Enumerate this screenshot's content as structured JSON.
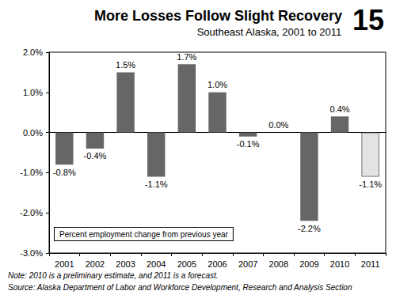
{
  "chart_data": {
    "type": "bar",
    "title": "More Losses Follow Slight Recovery",
    "subtitle": "Southeast Alaska, 2001 to 2011",
    "chart_number": "15",
    "caption": "Percent employment change from previous year",
    "notes": [
      "Note: 2010 is a preliminary estimate, and 2011 is a forecast.",
      "Source: Alaska Department of Labor and Workforce Development, Research and Analysis Section"
    ],
    "categories": [
      "2001",
      "2002",
      "2003",
      "2004",
      "2005",
      "2006",
      "2007",
      "2008",
      "2009",
      "2010",
      "2011"
    ],
    "values": [
      -0.8,
      -0.4,
      1.5,
      -1.1,
      1.7,
      1.0,
      -0.1,
      0.0,
      -2.2,
      0.4,
      -1.1
    ],
    "value_labels": [
      "-0.8%",
      "-0.4%",
      "1.5%",
      "-1.1%",
      "1.7%",
      "1.0%",
      "-0.1%",
      "0.0%",
      "-2.2%",
      "0.4%",
      "-1.1%"
    ],
    "colors": [
      "#666666",
      "#666666",
      "#666666",
      "#666666",
      "#666666",
      "#666666",
      "#666666",
      "#666666",
      "#666666",
      "#666666",
      "#e3e3e3"
    ],
    "ylim": [
      -3,
      2
    ],
    "yticks": [
      {
        "value": -3,
        "label": "-3.0%"
      },
      {
        "value": -2,
        "label": "-2.0%"
      },
      {
        "value": -1,
        "label": "-1.0%"
      },
      {
        "value": 0,
        "label": "0.0%"
      },
      {
        "value": 1,
        "label": "1.0%"
      },
      {
        "value": 2,
        "label": "2.0%"
      }
    ],
    "grid": false,
    "data_labels": true
  }
}
